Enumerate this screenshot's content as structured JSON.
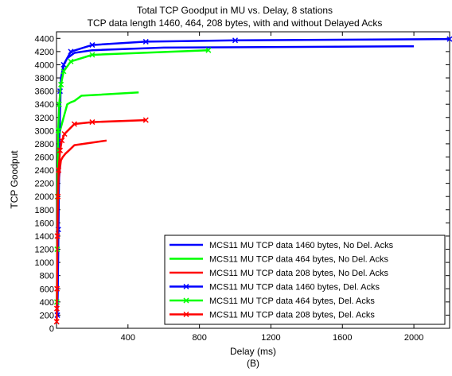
{
  "chart_data": {
    "type": "line",
    "title": "Total TCP Goodput in MU vs. Delay, 8 stations",
    "subtitle": "TCP data length 1460, 464, 208 bytes, with and without Delayed Acks",
    "xlabel": "Delay (ms)",
    "ylabel": "TCP Goodput",
    "caption": "(B)",
    "xlim": [
      0,
      2200
    ],
    "ylim": [
      0,
      4500
    ],
    "xticks": [
      400,
      800,
      1200,
      1600,
      2000
    ],
    "yticks": [
      0,
      200,
      400,
      600,
      800,
      1000,
      1200,
      1400,
      1600,
      1800,
      2000,
      2200,
      2400,
      2600,
      2800,
      3000,
      3200,
      3400,
      3600,
      3800,
      4000,
      4200,
      4400
    ],
    "grid": false,
    "legend_position": "bottom-right",
    "series": [
      {
        "name": "MCS11 MU TCP data 1460 bytes, No Del. Acks",
        "color": "#0000ff",
        "marker": "none",
        "x": [
          5,
          10,
          15,
          25,
          40,
          60,
          100,
          200,
          600,
          2000
        ],
        "y": [
          200,
          1200,
          2800,
          3800,
          4000,
          4100,
          4180,
          4220,
          4260,
          4280
        ]
      },
      {
        "name": "MCS11 MU TCP data 464 bytes, No Del. Acks",
        "color": "#00ff00",
        "marker": "none",
        "x": [
          3,
          6,
          10,
          15,
          20,
          30,
          45,
          60,
          80,
          100,
          140,
          460
        ],
        "y": [
          400,
          1500,
          2500,
          2900,
          3000,
          3100,
          3250,
          3400,
          3430,
          3450,
          3530,
          3580
        ]
      },
      {
        "name": "MCS11 MU TCP data 208 bytes, No Del. Acks",
        "color": "#ff0000",
        "marker": "none",
        "x": [
          2,
          5,
          8,
          12,
          18,
          25,
          35,
          50,
          70,
          100,
          280
        ],
        "y": [
          100,
          800,
          1600,
          2200,
          2400,
          2550,
          2600,
          2650,
          2700,
          2780,
          2850
        ]
      },
      {
        "name": "MCS11 MU TCP data 1460 bytes, Del. Acks",
        "color": "#0000ff",
        "marker": "x",
        "x": [
          5,
          10,
          20,
          40,
          80,
          200,
          500,
          1000,
          2200
        ],
        "y": [
          200,
          1500,
          3600,
          4000,
          4200,
          4300,
          4350,
          4370,
          4390
        ]
      },
      {
        "name": "MCS11 MU TCP data 464 bytes, Del. Acks",
        "color": "#00ff00",
        "marker": "x",
        "x": [
          2,
          4,
          6,
          10,
          15,
          25,
          40,
          80,
          200,
          850
        ],
        "y": [
          400,
          1200,
          2000,
          3000,
          3400,
          3700,
          3900,
          4050,
          4150,
          4220
        ]
      },
      {
        "name": "MCS11 MU TCP data 208 bytes, Del. Acks",
        "color": "#ff0000",
        "marker": "x",
        "x": [
          1,
          2,
          3,
          5,
          8,
          12,
          20,
          30,
          45,
          100,
          200,
          500
        ],
        "y": [
          100,
          300,
          600,
          1400,
          2000,
          2400,
          2700,
          2850,
          2950,
          3100,
          3130,
          3160
        ]
      }
    ]
  }
}
